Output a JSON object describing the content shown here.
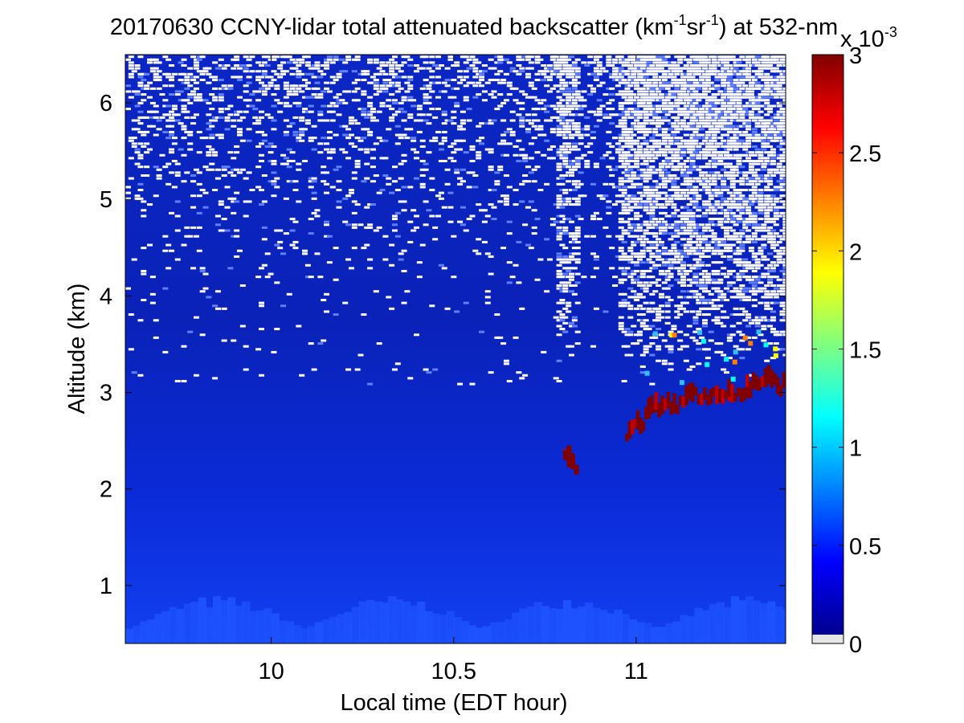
{
  "chart_data": {
    "type": "heatmap",
    "title": {
      "prefix": "20170630 CCNY-lidar total attenuated backscatter (km",
      "sup1": "-1",
      "mid": "sr",
      "sup2": "-1",
      "suffix": ") at 532-nm"
    },
    "xlabel": "Local time (EDT hour)",
    "ylabel": "Altitude (km)",
    "xlim": [
      9.6,
      11.41
    ],
    "ylim": [
      0.4,
      6.5
    ],
    "xticks": [
      10,
      10.5,
      11
    ],
    "xtick_labels": [
      "10",
      "10.5",
      "11"
    ],
    "yticks": [
      1,
      2,
      3,
      4,
      5,
      6
    ],
    "ytick_labels": [
      "1",
      "2",
      "3",
      "4",
      "5",
      "6"
    ],
    "colorbar": {
      "label": "",
      "scale_base": "x 10",
      "scale_exp": "-3",
      "range": [
        0,
        3
      ],
      "ticks": [
        0,
        0.5,
        1,
        1.5,
        2,
        2.5,
        3
      ],
      "tick_labels": [
        "0",
        "0.5",
        "1",
        "1.5",
        "2",
        "2.5",
        "3"
      ],
      "colormap": "jet",
      "below_range_color": "#e6e6e6"
    },
    "features": {
      "noise_region_start_altitude_km": 3.7,
      "cloud_layer": [
        {
          "time": 10.8,
          "altitude_km": 2.3
        },
        {
          "time": 10.82,
          "altitude_km": 2.25
        },
        {
          "time": 10.97,
          "altitude_km": 2.55
        },
        {
          "time": 11.0,
          "altitude_km": 2.6
        },
        {
          "time": 11.03,
          "altitude_km": 2.7
        },
        {
          "time": 11.05,
          "altitude_km": 2.8
        },
        {
          "time": 11.1,
          "altitude_km": 2.8
        },
        {
          "time": 11.15,
          "altitude_km": 2.95
        },
        {
          "time": 11.2,
          "altitude_km": 2.9
        },
        {
          "time": 11.25,
          "altitude_km": 2.9
        },
        {
          "time": 11.3,
          "altitude_km": 2.95
        },
        {
          "time": 11.35,
          "altitude_km": 3.1
        },
        {
          "time": 11.4,
          "altitude_km": 3.0
        }
      ]
    }
  },
  "colors": {
    "background_field": "#0a2ad9",
    "cloud": "#800000",
    "noise_dropout": "#ffffff"
  }
}
